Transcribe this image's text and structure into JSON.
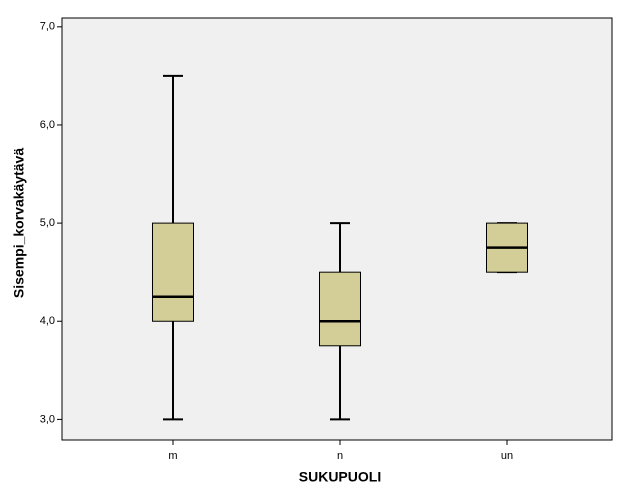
{
  "chart_data": {
    "type": "box",
    "xlabel": "SUKUPUOLI",
    "ylabel": "Sisempi_korvakäytävä",
    "categories": [
      "m",
      "n",
      "un"
    ],
    "min": [
      3.0,
      3.0,
      4.5
    ],
    "q1": [
      4.0,
      3.75,
      4.5
    ],
    "median": [
      4.25,
      4.0,
      4.75
    ],
    "q3": [
      5.0,
      4.5,
      5.0
    ],
    "max": [
      6.5,
      5.0,
      5.0
    ],
    "color": "#d3ce97",
    "ylim": [
      2.79,
      7.09
    ],
    "yticks": [
      {
        "value": 3,
        "label": "3,0"
      },
      {
        "value": 4,
        "label": "4,0"
      },
      {
        "value": 5,
        "label": "5,0"
      },
      {
        "value": 6,
        "label": "6,0"
      },
      {
        "value": 7,
        "label": "7,0"
      }
    ]
  }
}
